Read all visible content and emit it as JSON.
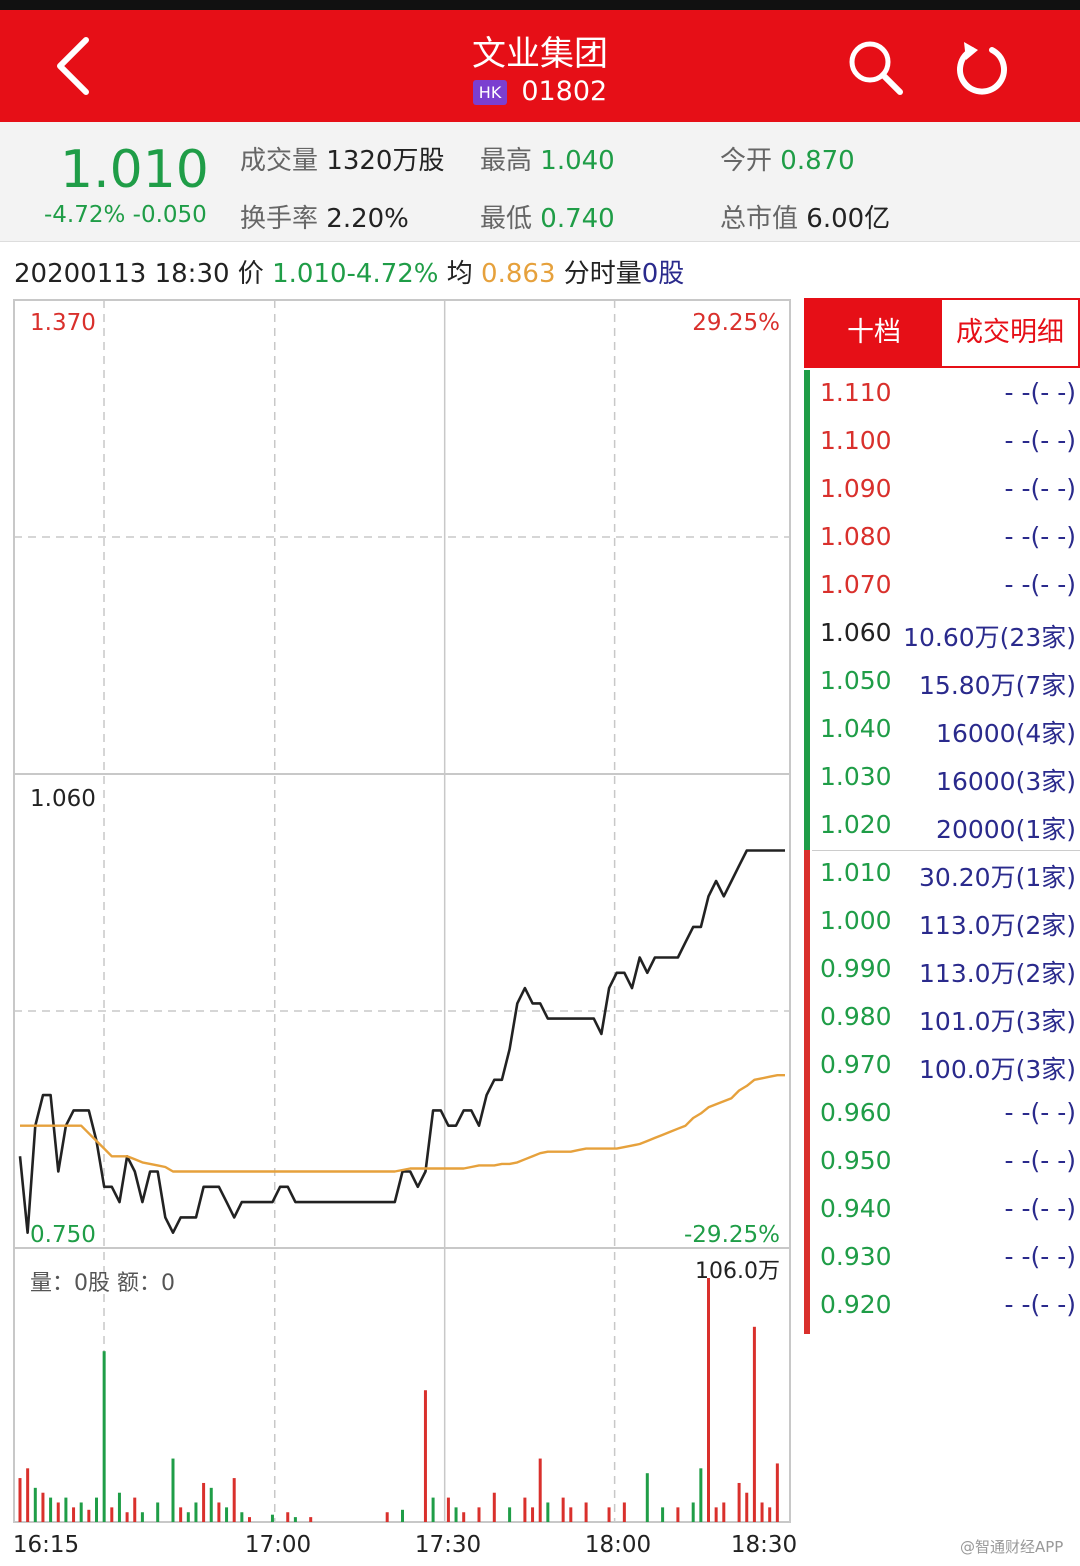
{
  "header": {
    "title": "文业集团",
    "market_badge": "HK",
    "code": "01802",
    "icons": [
      "back-icon",
      "search-icon",
      "refresh-icon"
    ]
  },
  "quote": {
    "price": "1.010",
    "change": "-4.72% -0.050",
    "volume_label": "成交量",
    "volume": "1320万股",
    "high_label": "最高",
    "high": "1.040",
    "open_label": "今开",
    "open": "0.870",
    "turnover_label": "换手率",
    "turnover": "2.20%",
    "low_label": "最低",
    "low": "0.740",
    "mktcap_label": "总市值",
    "mktcap": "6.00亿"
  },
  "info_line": {
    "datetime": "20200113 18:30",
    "price_label": "价",
    "price": "1.010",
    "pct": "-4.72%",
    "avg_label": "均",
    "avg": "0.863",
    "vol_label": "分时量",
    "vol": "0股"
  },
  "chart_labels": {
    "y_top": "1.370",
    "y_mid": "1.060",
    "y_bottom": "0.750",
    "pct_top": "29.25%",
    "pct_bottom": "-29.25%",
    "vol_info": "量：0股 额：0",
    "vol_max": "106.0万",
    "x_ticks": [
      "16:15",
      "17:00",
      "17:30",
      "18:00",
      "18:30"
    ]
  },
  "chart_data": {
    "type": "line",
    "ylim": [
      0.75,
      1.37
    ],
    "pct_range": [
      "-29.25%",
      "29.25%"
    ],
    "price_x": [
      0,
      1,
      2,
      3,
      4,
      5,
      6,
      7,
      8,
      9,
      10,
      11,
      12,
      13,
      14,
      15,
      16,
      17,
      18,
      19,
      20,
      21,
      22,
      23,
      24,
      25,
      26,
      27,
      28,
      29,
      30,
      31,
      32,
      33,
      34,
      35,
      36,
      37,
      38,
      39,
      40,
      41,
      42,
      43,
      44,
      45,
      46,
      47,
      48,
      49,
      50,
      51,
      52,
      53,
      54,
      55,
      56,
      57,
      58,
      59,
      60,
      61,
      62,
      63,
      64,
      65,
      66,
      67,
      68,
      69,
      70,
      71,
      72,
      73,
      74,
      75,
      76,
      77,
      78,
      79,
      80,
      81,
      82,
      83,
      84,
      85,
      86,
      87,
      88,
      89,
      90,
      91,
      92,
      93,
      94,
      95,
      96,
      97,
      98,
      99,
      100
    ],
    "series": [
      {
        "name": "价",
        "color": "#222222",
        "values": [
          0.81,
          0.76,
          0.83,
          0.85,
          0.85,
          0.8,
          0.83,
          0.84,
          0.84,
          0.84,
          0.82,
          0.79,
          0.79,
          0.78,
          0.81,
          0.8,
          0.78,
          0.8,
          0.8,
          0.77,
          0.76,
          0.77,
          0.77,
          0.77,
          0.79,
          0.79,
          0.79,
          0.78,
          0.77,
          0.78,
          0.78,
          0.78,
          0.78,
          0.78,
          0.79,
          0.79,
          0.78,
          0.78,
          0.78,
          0.78,
          0.78,
          0.78,
          0.78,
          0.78,
          0.78,
          0.78,
          0.78,
          0.78,
          0.78,
          0.78,
          0.8,
          0.8,
          0.79,
          0.8,
          0.84,
          0.84,
          0.83,
          0.83,
          0.84,
          0.84,
          0.83,
          0.85,
          0.86,
          0.86,
          0.88,
          0.91,
          0.92,
          0.91,
          0.91,
          0.9,
          0.9,
          0.9,
          0.9,
          0.9,
          0.9,
          0.9,
          0.89,
          0.92,
          0.93,
          0.93,
          0.92,
          0.94,
          0.93,
          0.94,
          0.94,
          0.94,
          0.94,
          0.95,
          0.96,
          0.96,
          0.98,
          0.99,
          0.98,
          0.99,
          1.0,
          1.01,
          1.01,
          1.01,
          1.01,
          1.01,
          1.01
        ]
      },
      {
        "name": "均",
        "color": "#e6a13c",
        "values": [
          0.83,
          0.83,
          0.83,
          0.83,
          0.83,
          0.83,
          0.83,
          0.83,
          0.83,
          0.825,
          0.82,
          0.815,
          0.81,
          0.81,
          0.81,
          0.808,
          0.806,
          0.805,
          0.804,
          0.803,
          0.8,
          0.8,
          0.8,
          0.8,
          0.8,
          0.8,
          0.8,
          0.8,
          0.8,
          0.8,
          0.8,
          0.8,
          0.8,
          0.8,
          0.8,
          0.8,
          0.8,
          0.8,
          0.8,
          0.8,
          0.8,
          0.8,
          0.8,
          0.8,
          0.8,
          0.8,
          0.8,
          0.8,
          0.8,
          0.8,
          0.801,
          0.802,
          0.802,
          0.802,
          0.802,
          0.802,
          0.802,
          0.802,
          0.802,
          0.803,
          0.804,
          0.804,
          0.804,
          0.805,
          0.805,
          0.806,
          0.808,
          0.81,
          0.812,
          0.813,
          0.813,
          0.813,
          0.813,
          0.814,
          0.815,
          0.815,
          0.815,
          0.815,
          0.815,
          0.816,
          0.817,
          0.818,
          0.82,
          0.822,
          0.824,
          0.826,
          0.828,
          0.83,
          0.835,
          0.838,
          0.842,
          0.844,
          0.846,
          0.848,
          0.853,
          0.856,
          0.86,
          0.861,
          0.862,
          0.863,
          0.863
        ]
      }
    ],
    "volume_max": 1060000,
    "volume_bars": [
      {
        "x": 0,
        "v": 0.18,
        "c": "r"
      },
      {
        "x": 1,
        "v": 0.22,
        "c": "r"
      },
      {
        "x": 2,
        "v": 0.14,
        "c": "g"
      },
      {
        "x": 3,
        "v": 0.12,
        "c": "r"
      },
      {
        "x": 4,
        "v": 0.1,
        "c": "g"
      },
      {
        "x": 5,
        "v": 0.08,
        "c": "r"
      },
      {
        "x": 6,
        "v": 0.1,
        "c": "g"
      },
      {
        "x": 7,
        "v": 0.06,
        "c": "r"
      },
      {
        "x": 8,
        "v": 0.08,
        "c": "g"
      },
      {
        "x": 9,
        "v": 0.05,
        "c": "r"
      },
      {
        "x": 10,
        "v": 0.1,
        "c": "g"
      },
      {
        "x": 11,
        "v": 0.7,
        "c": "g"
      },
      {
        "x": 12,
        "v": 0.06,
        "c": "r"
      },
      {
        "x": 13,
        "v": 0.12,
        "c": "g"
      },
      {
        "x": 14,
        "v": 0.04,
        "c": "r"
      },
      {
        "x": 15,
        "v": 0.1,
        "c": "r"
      },
      {
        "x": 16,
        "v": 0.04,
        "c": "g"
      },
      {
        "x": 18,
        "v": 0.08,
        "c": "g"
      },
      {
        "x": 20,
        "v": 0.26,
        "c": "g"
      },
      {
        "x": 21,
        "v": 0.06,
        "c": "r"
      },
      {
        "x": 22,
        "v": 0.04,
        "c": "g"
      },
      {
        "x": 23,
        "v": 0.08,
        "c": "g"
      },
      {
        "x": 24,
        "v": 0.16,
        "c": "r"
      },
      {
        "x": 25,
        "v": 0.14,
        "c": "g"
      },
      {
        "x": 26,
        "v": 0.08,
        "c": "r"
      },
      {
        "x": 27,
        "v": 0.06,
        "c": "g"
      },
      {
        "x": 28,
        "v": 0.18,
        "c": "r"
      },
      {
        "x": 29,
        "v": 0.04,
        "c": "g"
      },
      {
        "x": 30,
        "v": 0.02,
        "c": "r"
      },
      {
        "x": 33,
        "v": 0.03,
        "c": "g"
      },
      {
        "x": 35,
        "v": 0.04,
        "c": "r"
      },
      {
        "x": 36,
        "v": 0.02,
        "c": "g"
      },
      {
        "x": 38,
        "v": 0.02,
        "c": "r"
      },
      {
        "x": 48,
        "v": 0.04,
        "c": "r"
      },
      {
        "x": 50,
        "v": 0.05,
        "c": "g"
      },
      {
        "x": 53,
        "v": 0.54,
        "c": "r"
      },
      {
        "x": 54,
        "v": 0.1,
        "c": "g"
      },
      {
        "x": 56,
        "v": 0.1,
        "c": "r"
      },
      {
        "x": 57,
        "v": 0.06,
        "c": "g"
      },
      {
        "x": 58,
        "v": 0.04,
        "c": "r"
      },
      {
        "x": 60,
        "v": 0.06,
        "c": "r"
      },
      {
        "x": 62,
        "v": 0.12,
        "c": "r"
      },
      {
        "x": 64,
        "v": 0.06,
        "c": "g"
      },
      {
        "x": 66,
        "v": 0.1,
        "c": "r"
      },
      {
        "x": 67,
        "v": 0.06,
        "c": "r"
      },
      {
        "x": 68,
        "v": 0.26,
        "c": "r"
      },
      {
        "x": 69,
        "v": 0.08,
        "c": "g"
      },
      {
        "x": 71,
        "v": 0.1,
        "c": "r"
      },
      {
        "x": 72,
        "v": 0.06,
        "c": "r"
      },
      {
        "x": 74,
        "v": 0.08,
        "c": "r"
      },
      {
        "x": 77,
        "v": 0.06,
        "c": "r"
      },
      {
        "x": 79,
        "v": 0.08,
        "c": "r"
      },
      {
        "x": 82,
        "v": 0.2,
        "c": "g"
      },
      {
        "x": 84,
        "v": 0.06,
        "c": "g"
      },
      {
        "x": 86,
        "v": 0.06,
        "c": "r"
      },
      {
        "x": 88,
        "v": 0.08,
        "c": "g"
      },
      {
        "x": 89,
        "v": 0.22,
        "c": "g"
      },
      {
        "x": 90,
        "v": 1.0,
        "c": "r"
      },
      {
        "x": 91,
        "v": 0.06,
        "c": "r"
      },
      {
        "x": 92,
        "v": 0.08,
        "c": "r"
      },
      {
        "x": 94,
        "v": 0.16,
        "c": "r"
      },
      {
        "x": 95,
        "v": 0.12,
        "c": "r"
      },
      {
        "x": 96,
        "v": 0.8,
        "c": "r"
      },
      {
        "x": 97,
        "v": 0.08,
        "c": "r"
      },
      {
        "x": 98,
        "v": 0.06,
        "c": "r"
      },
      {
        "x": 99,
        "v": 0.24,
        "c": "r"
      }
    ],
    "x_ticks": [
      "16:15",
      "17:00",
      "17:30",
      "18:00",
      "18:30"
    ]
  },
  "order_book": {
    "tab_active": "十档",
    "tab_other": "成交明细",
    "asks": [
      {
        "price": "1.110",
        "qty": "- -(- -)"
      },
      {
        "price": "1.100",
        "qty": "- -(- -)"
      },
      {
        "price": "1.090",
        "qty": "- -(- -)"
      },
      {
        "price": "1.080",
        "qty": "- -(- -)"
      },
      {
        "price": "1.070",
        "qty": "- -(- -)"
      },
      {
        "price": "1.060",
        "qty": "10.60万(23家)"
      },
      {
        "price": "1.050",
        "qty": "15.80万(7家)"
      },
      {
        "price": "1.040",
        "qty": "16000(4家)"
      },
      {
        "price": "1.030",
        "qty": "16000(3家)"
      },
      {
        "price": "1.020",
        "qty": "20000(1家)"
      }
    ],
    "bids": [
      {
        "price": "1.010",
        "qty": "30.20万(1家)"
      },
      {
        "price": "1.000",
        "qty": "113.0万(2家)"
      },
      {
        "price": "0.990",
        "qty": "113.0万(2家)"
      },
      {
        "price": "0.980",
        "qty": "101.0万(3家)"
      },
      {
        "price": "0.970",
        "qty": "100.0万(3家)"
      },
      {
        "price": "0.960",
        "qty": "- -(- -)"
      },
      {
        "price": "0.950",
        "qty": "- -(- -)"
      },
      {
        "price": "0.940",
        "qty": "- -(- -)"
      },
      {
        "price": "0.930",
        "qty": "- -(- -)"
      },
      {
        "price": "0.920",
        "qty": "- -(- -)"
      }
    ],
    "price_colors": {
      "up": "#d9302c",
      "down": "#1f9d47",
      "flat": "#222222"
    }
  },
  "watermark": "@智通财经APP"
}
